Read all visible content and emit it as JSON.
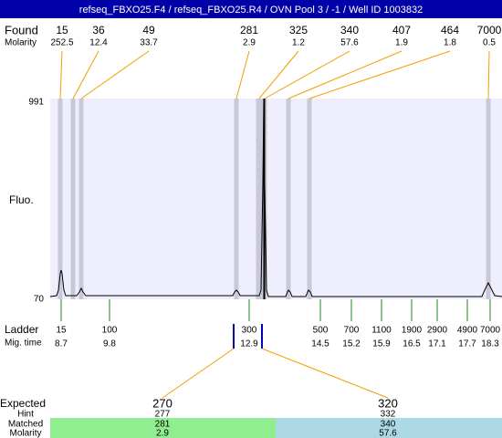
{
  "header": {
    "title": "refseq_FBXO25.F4 / refseq_FBXO25.R4 / OVN Pool 3 / -1 / Well ID 1003832"
  },
  "found": {
    "label": "Found",
    "molarity_label": "Molarity",
    "sizes": [
      15,
      36,
      49,
      281,
      325,
      340,
      407,
      464,
      7000
    ],
    "molarity": [
      252.5,
      12.4,
      33.7,
      2.9,
      1.2,
      57.6,
      1.9,
      1.8,
      0.5
    ]
  },
  "plot": {
    "y_top": 991,
    "y_bottom": 70,
    "y_label": "Fluo."
  },
  "ladder": {
    "label": "Ladder",
    "mig_label": "Mig. time",
    "sizes": [
      15,
      100,
      300,
      500,
      700,
      1100,
      1900,
      2900,
      4900,
      7000
    ],
    "mig_times": [
      8.7,
      9.8,
      12.9,
      14.5,
      15.2,
      15.9,
      16.5,
      17.1,
      17.7,
      18.3
    ]
  },
  "expected": {
    "label": "Expected",
    "hint_label": "Hint",
    "matched_label": "Matched",
    "molarity_label": "Molarity",
    "values": [
      270,
      320
    ],
    "hint": [
      277,
      332
    ],
    "matched": [
      281,
      340
    ],
    "molarity": [
      2.9,
      57.6
    ]
  }
}
